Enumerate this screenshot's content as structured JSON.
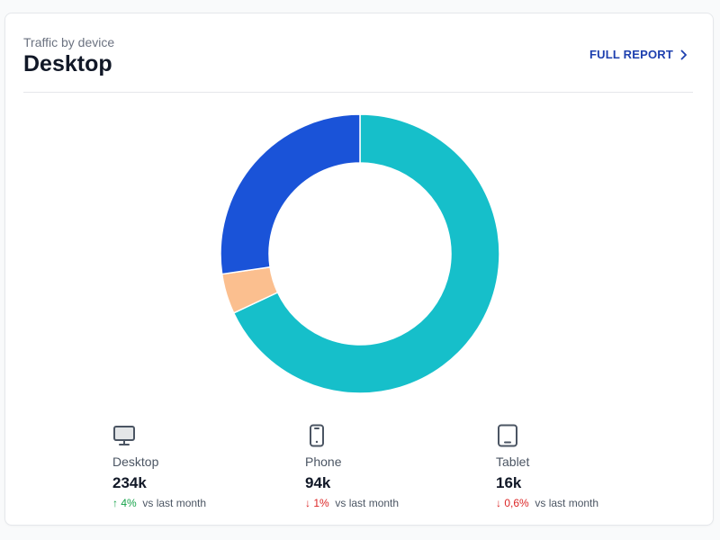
{
  "header": {
    "subtitle": "Traffic by device",
    "title": "Desktop",
    "report_label": "FULL REPORT"
  },
  "chart_data": {
    "type": "pie",
    "variant": "donut",
    "categories": [
      "Desktop",
      "Phone",
      "Tablet"
    ],
    "values": [
      234,
      94,
      16
    ],
    "colors": [
      "#16bfca",
      "#1a53d8",
      "#fbbf8f"
    ]
  },
  "stats": [
    {
      "name": "Desktop",
      "icon": "desktop-icon",
      "value": "234k",
      "trend": "up",
      "arrow": "↑",
      "delta": "4%",
      "suffix": "vs last month"
    },
    {
      "name": "Phone",
      "icon": "phone-icon",
      "value": "94k",
      "trend": "down",
      "arrow": "↓",
      "delta": "1%",
      "suffix": "vs last month"
    },
    {
      "name": "Tablet",
      "icon": "tablet-icon",
      "value": "16k",
      "trend": "down",
      "arrow": "↓",
      "delta": "0,6%",
      "suffix": "vs last month"
    }
  ],
  "colors": {
    "trend_up": "#16a34a",
    "trend_down": "#dc2626",
    "link": "#1e40af"
  }
}
